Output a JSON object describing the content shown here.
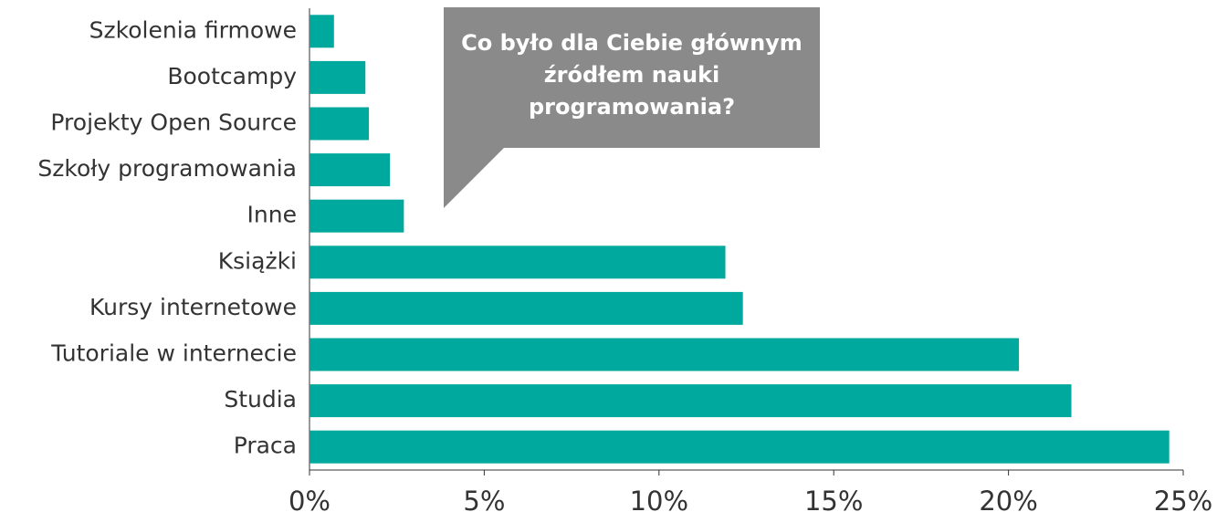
{
  "chart_data": {
    "type": "bar",
    "orientation": "horizontal",
    "title": "Co było dla Ciebie głównym źródłem nauki programowania?",
    "categories": [
      "Szkolenia firmowe",
      "Bootcampy",
      "Projekty Open Source",
      "Szkoły programowania",
      "Inne",
      "Książki",
      "Kursy internetowe",
      "Tutoriale w internecie",
      "Studia",
      "Praca"
    ],
    "values": [
      0.7,
      1.6,
      1.7,
      2.3,
      2.7,
      11.9,
      12.4,
      20.3,
      21.8,
      24.6
    ],
    "color": "#00a99d",
    "xlim": [
      0,
      25
    ],
    "xticks": [
      {
        "value": 0,
        "label": "0%"
      },
      {
        "value": 5,
        "label": "5%"
      },
      {
        "value": 10,
        "label": "10%"
      },
      {
        "value": 15,
        "label": "15%"
      },
      {
        "value": 20,
        "label": "20%"
      },
      {
        "value": 25,
        "label": "25%"
      }
    ]
  }
}
